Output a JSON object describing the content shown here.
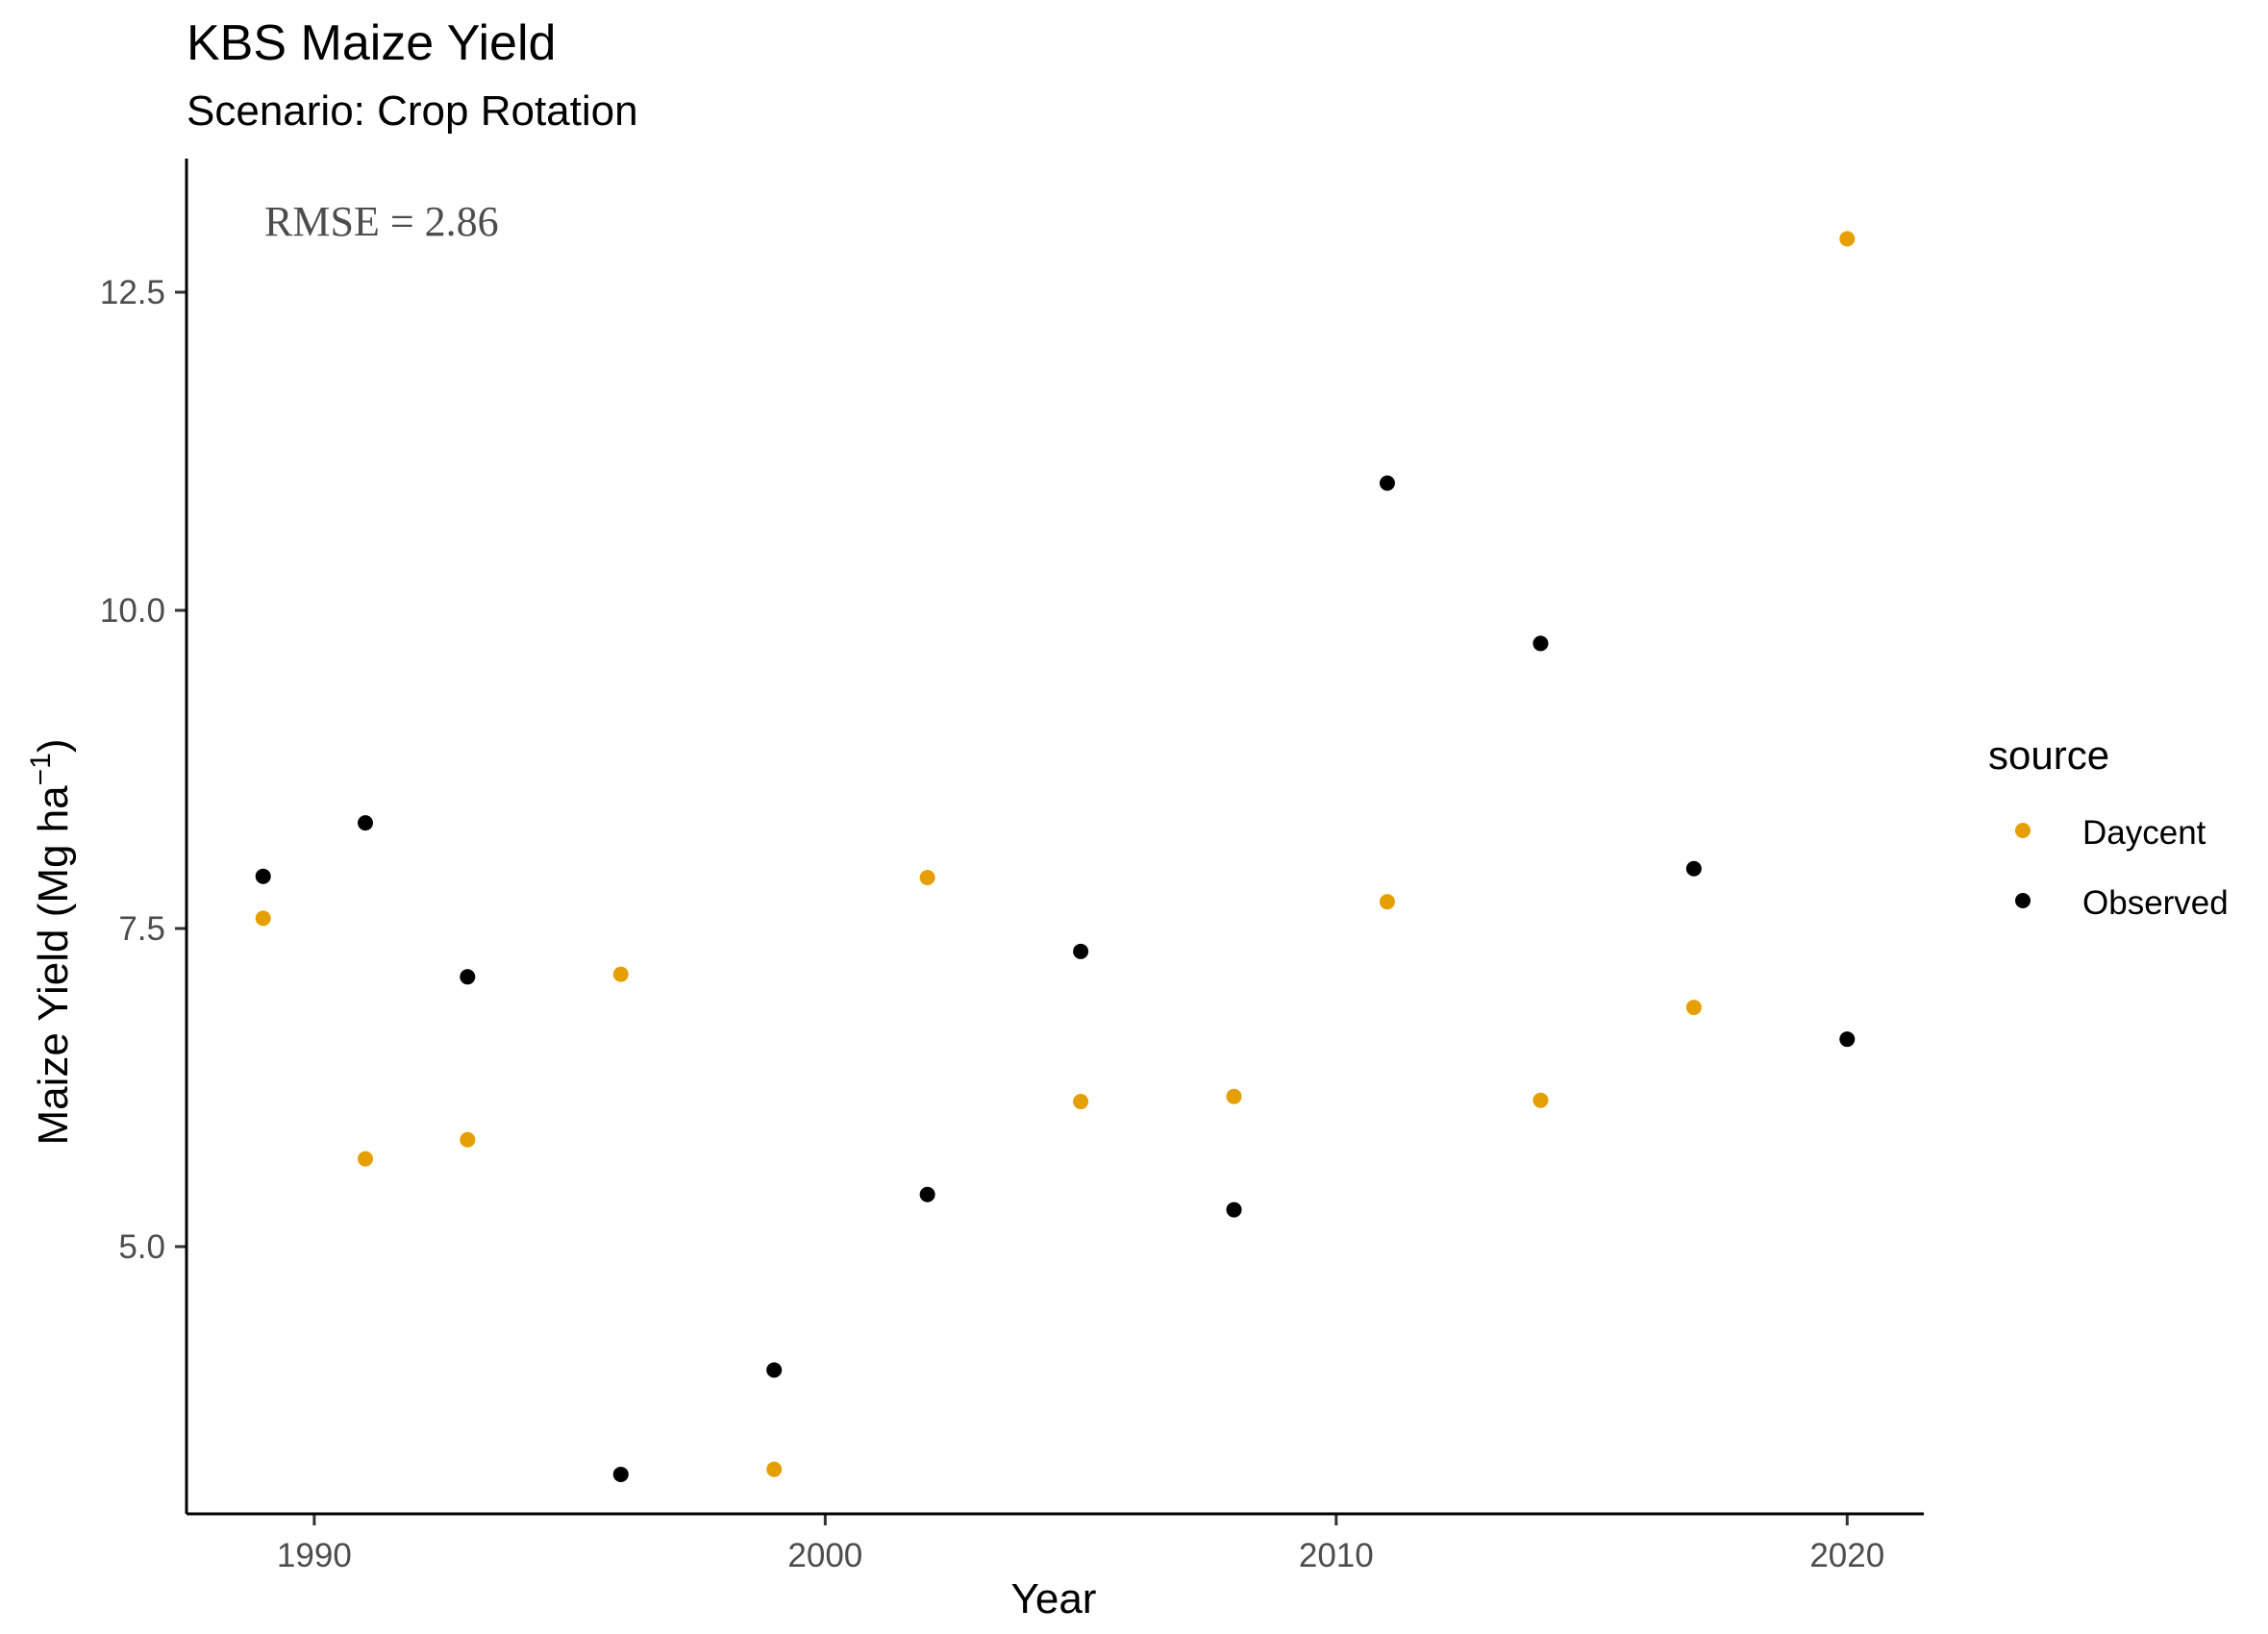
{
  "chart_data": {
    "type": "scatter",
    "title": "KBS Maize Yield",
    "subtitle": "Scenario: Crop Rotation",
    "xlabel": "Year",
    "ylabel": "Maize Yield (Mg ha",
    "ylabel_superscript": "−1",
    "ylabel_close": ")",
    "xlim": [
      1987.5,
      2021.5
    ],
    "ylim": [
      2.9,
      13.55
    ],
    "x_ticks": [
      1990,
      2000,
      2010,
      2020
    ],
    "x_tick_labels": [
      "1990",
      "2000",
      "2010",
      "2020"
    ],
    "y_ticks": [
      5.0,
      7.5,
      10.0,
      12.5
    ],
    "y_tick_labels": [
      "5.0",
      "7.5",
      "10.0",
      "12.5"
    ],
    "grid": false,
    "legend": {
      "title": "source",
      "placement": "right"
    },
    "annotation": "RMSE = 2.86",
    "series": [
      {
        "name": "Daycent",
        "color": "#E69F00",
        "points": [
          {
            "x": 1989,
            "y": 7.58
          },
          {
            "x": 1991,
            "y": 5.69
          },
          {
            "x": 1993,
            "y": 5.84
          },
          {
            "x": 1996,
            "y": 7.14
          },
          {
            "x": 1999,
            "y": 3.25
          },
          {
            "x": 2002,
            "y": 7.9
          },
          {
            "x": 2005,
            "y": 6.14
          },
          {
            "x": 2008,
            "y": 6.18
          },
          {
            "x": 2011,
            "y": 7.71
          },
          {
            "x": 2014,
            "y": 6.15
          },
          {
            "x": 2017,
            "y": 6.88
          },
          {
            "x": 2020,
            "y": 12.92
          }
        ]
      },
      {
        "name": "Observed",
        "color": "#000000",
        "points": [
          {
            "x": 1989,
            "y": 7.91
          },
          {
            "x": 1991,
            "y": 8.33
          },
          {
            "x": 1993,
            "y": 7.12
          },
          {
            "x": 1996,
            "y": 3.21
          },
          {
            "x": 1999,
            "y": 4.03
          },
          {
            "x": 2002,
            "y": 5.41
          },
          {
            "x": 2005,
            "y": 7.32
          },
          {
            "x": 2008,
            "y": 5.29
          },
          {
            "x": 2011,
            "y": 11.0
          },
          {
            "x": 2014,
            "y": 9.74
          },
          {
            "x": 2017,
            "y": 7.97
          },
          {
            "x": 2020,
            "y": 6.63
          }
        ]
      }
    ]
  }
}
